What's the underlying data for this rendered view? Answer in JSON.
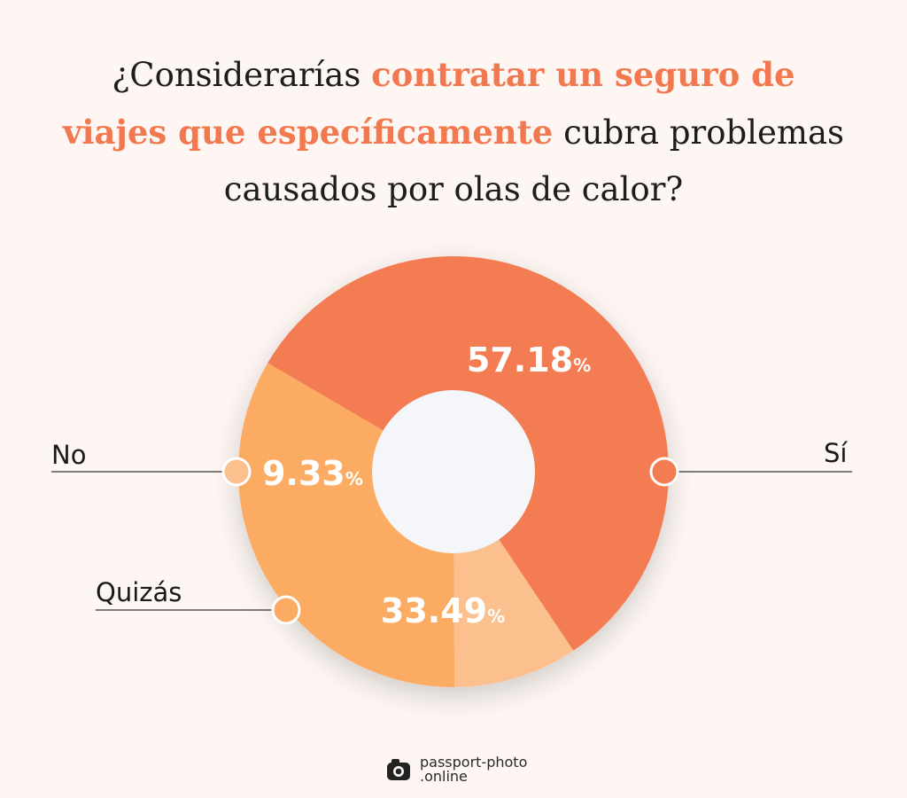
{
  "title": {
    "part1": "¿Considerarías ",
    "highlight": "contratar un seguro de viajes que específicamente",
    "part2": " cubra problemas causados por olas de calor?"
  },
  "chart_data": {
    "type": "pie",
    "donut": true,
    "unit": "%",
    "categories": [
      "Sí",
      "Quizás",
      "No"
    ],
    "values": [
      57.18,
      33.49,
      9.33
    ],
    "colors": [
      "#f47c52",
      "#fbab62",
      "#fcc08f"
    ],
    "value_labels": [
      "57.18",
      "33.49",
      "9.33"
    ]
  },
  "brand": {
    "line1": "passport-photo",
    "line2": ".online"
  },
  "colors": {
    "background": "#fdf6f3",
    "highlight": "#f2794f",
    "center": "#f4f6fa"
  }
}
